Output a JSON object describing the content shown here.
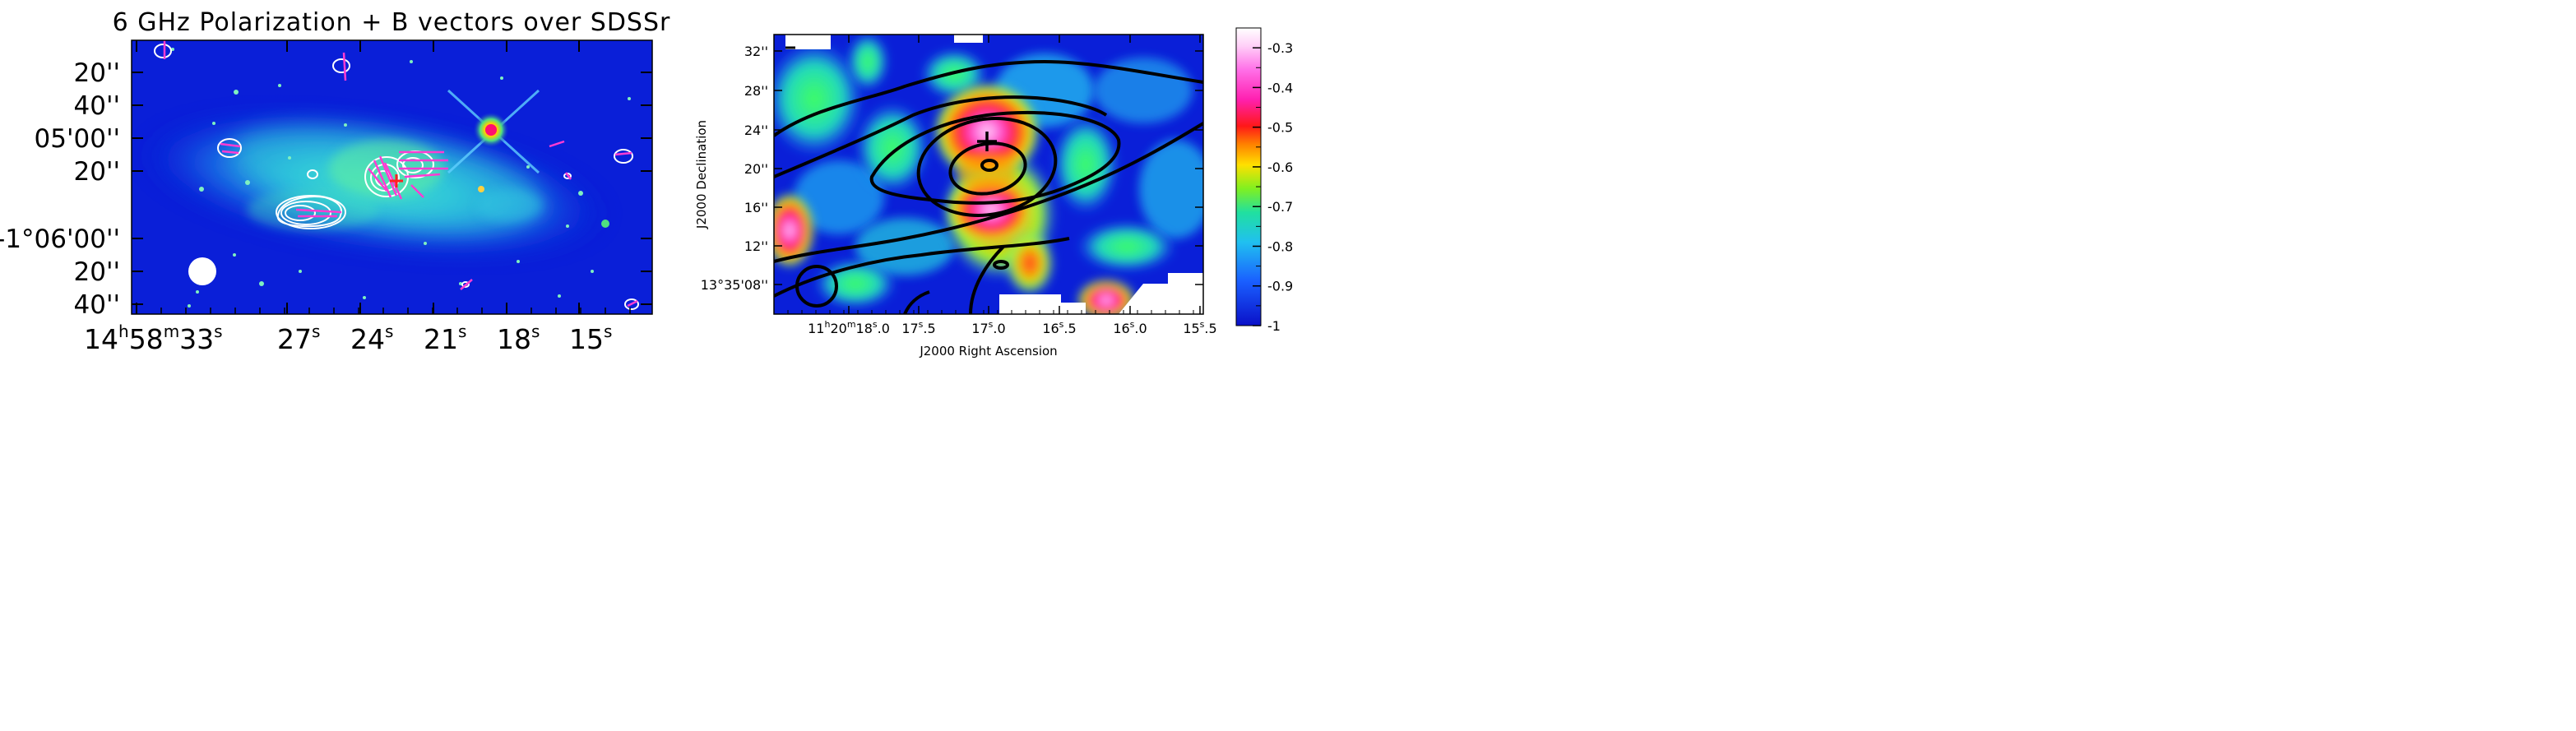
{
  "left_panel": {
    "title": "6 GHz Polarization + B vectors over SDSSr",
    "dec_ticks": [
      {
        "label": "20''",
        "sub": ""
      },
      {
        "label": "40''",
        "sub": ""
      },
      {
        "label": "05'00''",
        "sub": ""
      },
      {
        "label": "20''",
        "sub": ""
      },
      {
        "label": "-1°06'00''",
        "sub": ""
      },
      {
        "label": "20''",
        "sub": ""
      },
      {
        "label": "40''",
        "sub": ""
      }
    ],
    "ra_ticks": [
      {
        "label": "14",
        "h": "h",
        "m": "58",
        "mm": "m",
        "s": "33",
        "ss": "s",
        "full": true
      },
      {
        "label": "27",
        "ss": "s"
      },
      {
        "label": "24",
        "ss": "s"
      },
      {
        "label": "21",
        "ss": "s"
      },
      {
        "label": "18",
        "ss": "s"
      },
      {
        "label": "15",
        "ss": "s"
      }
    ]
  },
  "chart_data": [
    {
      "type": "heatmap",
      "panel": "left",
      "title": "6 GHz Polarization + B vectors over SDSSr",
      "xlabel": "",
      "ylabel": "",
      "x_tick_labels": [
        "14h58m33s",
        "27s",
        "24s",
        "21s",
        "18s",
        "15s"
      ],
      "y_tick_labels": [
        "20''",
        "40''",
        "05'00''",
        "20''",
        "-1°06'00''",
        "20''",
        "40''"
      ],
      "overlays": [
        "white polarization contours",
        "magenta B-field vectors",
        "white beam ellipse",
        "red cross"
      ]
    },
    {
      "type": "heatmap",
      "panel": "right",
      "title": "",
      "xlabel": "J2000 Right Ascension",
      "ylabel": "J2000 Declination",
      "x_tick_labels": [
        "11h20m18s.0",
        "17s.5",
        "17s.0",
        "16s.5",
        "16s.0",
        "15s.5"
      ],
      "y_tick_labels": [
        "32''",
        "28''",
        "24''",
        "20''",
        "16''",
        "12''",
        "13°35'08''"
      ],
      "colorbar": {
        "min": -1,
        "max": -0.25,
        "ticks": [
          -0.3,
          -0.4,
          -0.5,
          -0.6,
          -0.7,
          -0.8,
          -0.9,
          -1
        ]
      },
      "overlays": [
        "black contours",
        "black beam circle",
        "black cross"
      ]
    }
  ],
  "right_panel": {
    "xlabel": "J2000 Right Ascension",
    "ylabel": "J2000 Declination",
    "dec_ticks": [
      {
        "label": "32''"
      },
      {
        "label": "28''"
      },
      {
        "label": "24''"
      },
      {
        "label": "20''"
      },
      {
        "label": "16''"
      },
      {
        "label": "12''"
      },
      {
        "label": "13°35'08''"
      }
    ],
    "ra_ticks": [
      {
        "pre": "11",
        "h": "h",
        "mid": "20",
        "m": "m",
        "s": "18",
        "ss": "s",
        "frac": ".0"
      },
      {
        "s": "17",
        "ss": "s",
        "frac": ".5"
      },
      {
        "s": "17",
        "ss": "s",
        "frac": ".0"
      },
      {
        "s": "16",
        "ss": "s",
        "frac": ".5"
      },
      {
        "s": "16",
        "ss": "s",
        "frac": ".0"
      },
      {
        "s": "15",
        "ss": "s",
        "frac": ".5"
      }
    ],
    "colorbar_ticks": [
      {
        "v": -0.3,
        "label": "-0.3"
      },
      {
        "v": -0.4,
        "label": "-0.4"
      },
      {
        "v": -0.5,
        "label": "-0.5"
      },
      {
        "v": -0.6,
        "label": "-0.6"
      },
      {
        "v": -0.7,
        "label": "-0.7"
      },
      {
        "v": -0.8,
        "label": "-0.8"
      },
      {
        "v": -0.9,
        "label": "-0.9"
      },
      {
        "v": -1,
        "label": "-1"
      }
    ]
  },
  "colors": {
    "blue": "#0a1fd8",
    "magenta": "#ff3cd2",
    "contour_white": "#ffffff",
    "contour_black": "#000000"
  }
}
